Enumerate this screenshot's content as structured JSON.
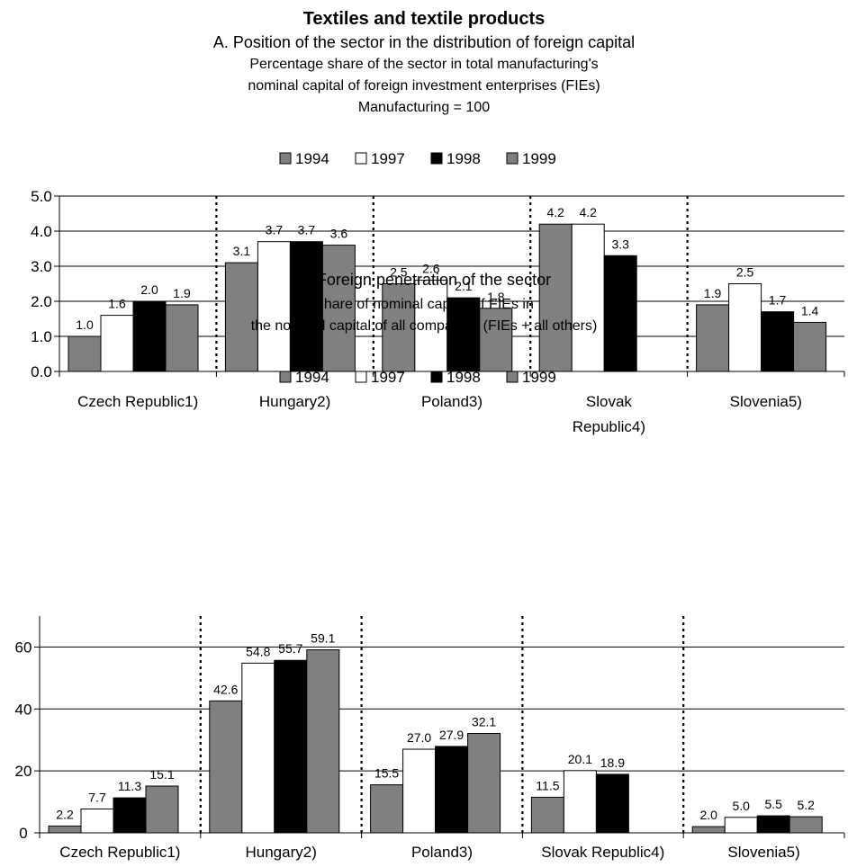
{
  "title": "Textiles and textile products",
  "colors": {
    "s1994": "#808080",
    "s1997": "#ffffff",
    "s1998": "#000000",
    "s1999": "#808080"
  },
  "chart_data": [
    {
      "type": "bar",
      "title": "A. Position of the sector in the distribution of foreign capital",
      "subtitle_lines": [
        "Percentage share of the sector in total manufacturing's",
        "nominal capital of foreign investment enterprises (FIEs)",
        "Manufacturing = 100"
      ],
      "categories": [
        [
          "Czech Republic1)"
        ],
        [
          "Hungary2)"
        ],
        [
          "Poland3)"
        ],
        [
          "Slovak",
          "Republic4)"
        ],
        [
          "Slovenia5)"
        ]
      ],
      "series": [
        {
          "name": "1994",
          "values": [
            1.0,
            3.1,
            2.5,
            4.2,
            1.9
          ]
        },
        {
          "name": "1997",
          "values": [
            1.6,
            3.7,
            2.6,
            4.2,
            2.5
          ]
        },
        {
          "name": "1998",
          "values": [
            2.0,
            3.7,
            2.1,
            3.3,
            1.7
          ]
        },
        {
          "name": "1999",
          "values": [
            1.9,
            3.6,
            1.8,
            null,
            1.4
          ]
        }
      ],
      "labels": [
        [
          "1.0",
          "3.1",
          "2.5",
          "4.2",
          "1.9"
        ],
        [
          "1.6",
          "3.7",
          "2.6",
          "4.2",
          "2.5"
        ],
        [
          "2.0",
          "3.7",
          "2.1",
          "3.3",
          "1.7"
        ],
        [
          "1.9",
          "3.6",
          "1.8",
          null,
          "1.4"
        ]
      ],
      "yticks": [
        "0.0",
        "1.0",
        "2.0",
        "3.0",
        "4.0",
        "5.0"
      ],
      "ylim": [
        0,
        5
      ],
      "grid": true,
      "legend": "top-center"
    },
    {
      "type": "bar",
      "title": "B. Foreign penetration of the sector",
      "subtitle_lines": [
        "Share of nominal capital of FIEs in",
        "the nominal capital of all companies (FIEs + all others)"
      ],
      "categories": [
        [
          "Czech Republic1)"
        ],
        [
          "Hungary2)"
        ],
        [
          "Poland3)"
        ],
        [
          "Slovak Republic4)"
        ],
        [
          "Slovenia5)"
        ]
      ],
      "series": [
        {
          "name": "1994",
          "values": [
            2.2,
            42.6,
            15.5,
            11.5,
            2.0
          ]
        },
        {
          "name": "1997",
          "values": [
            7.7,
            54.8,
            27.0,
            20.1,
            5.0
          ]
        },
        {
          "name": "1998",
          "values": [
            11.3,
            55.7,
            27.9,
            18.9,
            5.5
          ]
        },
        {
          "name": "1999",
          "values": [
            15.1,
            59.1,
            32.1,
            null,
            5.2
          ]
        }
      ],
      "labels": [
        [
          "2.2",
          "42.6",
          "15.5",
          "11.5",
          "2.0"
        ],
        [
          "7.7",
          "54.8",
          "27.0",
          "20.1",
          "5.0"
        ],
        [
          "11.3",
          "55.7",
          "27.9",
          "18.9",
          "5.5"
        ],
        [
          "15.1",
          "59.1",
          "32.1",
          null,
          "5.2"
        ]
      ],
      "yticks": [
        "0",
        "20",
        "40",
        "60"
      ],
      "ylim": [
        0,
        70
      ],
      "grid": true,
      "legend": "top-center"
    }
  ]
}
